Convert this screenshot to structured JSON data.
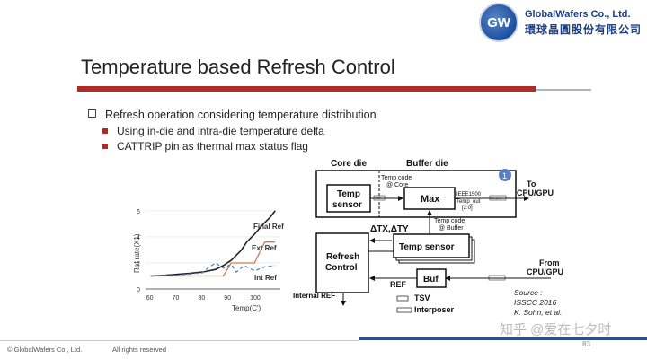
{
  "header": {
    "logo_text": "GW",
    "company_en": "GlobalWafers Co., Ltd.",
    "company_cn": "環球晶圓股份有限公司"
  },
  "title": "Temperature based Refresh Control",
  "bullets": {
    "main": "Refresh operation considering temperature distribution",
    "sub": [
      "Using in-die and intra-die temperature delta",
      "CATTRIP pin as thermal max status flag"
    ]
  },
  "chart_data": {
    "type": "line",
    "xlabel": "Temp(C')",
    "ylabel": "Ref rate(X1)",
    "x_ticks": [
      60,
      70,
      80,
      90,
      100
    ],
    "y_ticks": [
      0,
      2,
      4,
      6
    ],
    "xlim": [
      58,
      110
    ],
    "ylim": [
      0,
      6.2
    ],
    "series": [
      {
        "name": "Final Ref",
        "style": "solid",
        "color": "#222222",
        "x": [
          60,
          65,
          70,
          75,
          80,
          85,
          88,
          91,
          93,
          95,
          97,
          100,
          103,
          106,
          108
        ],
        "y": [
          1.0,
          1.05,
          1.12,
          1.2,
          1.3,
          1.5,
          1.8,
          2.2,
          2.6,
          3.0,
          3.6,
          4.2,
          4.9,
          5.5,
          6.0
        ]
      },
      {
        "name": "Ext Ref",
        "style": "solid",
        "color": "#c97a5a",
        "x": [
          60,
          70,
          80,
          88,
          91,
          95,
          100,
          104,
          108
        ],
        "y": [
          1.0,
          1.0,
          1.0,
          1.0,
          2.0,
          2.0,
          2.0,
          3.6,
          3.6
        ]
      },
      {
        "name": "Int Ref",
        "style": "dashed",
        "color": "#5b86b0",
        "x": [
          60,
          70,
          80,
          82,
          85,
          88,
          91,
          93,
          96,
          100,
          104,
          108
        ],
        "y": [
          1.0,
          1.05,
          1.25,
          1.6,
          2.0,
          1.6,
          1.9,
          1.3,
          1.8,
          1.4,
          1.7,
          1.8
        ]
      }
    ]
  },
  "diagram": {
    "core_die": "Core die",
    "buffer_die": "Buffer die",
    "badge": "1",
    "temp_sensor_top": [
      "Temp",
      "sensor"
    ],
    "max": "Max",
    "temp_code_core": [
      "Temp code",
      "@ Core"
    ],
    "ieee": [
      "IEEE1500",
      "Temp_out",
      "[2:0]"
    ],
    "to_cpu": [
      "To",
      "CPU/GPU"
    ],
    "delta": "ΔTX,ΔTY",
    "temp_code_buffer": [
      "Temp code",
      "@ Buffer"
    ],
    "temp_sensor_mid": "Temp sensor",
    "refresh_control": [
      "Refresh",
      "Control"
    ],
    "from_cpu": [
      "From",
      "CPU/GPU"
    ],
    "ref": "REF",
    "buf": "Buf",
    "internal_ref": "Internal REF",
    "tsv": "TSV",
    "interposer": "Interposer",
    "source": [
      "Source :",
      "ISSCC 2016",
      "K. Sohn, et al."
    ],
    "tsv_tag": "TSV",
    "interposer_tag": "interposer"
  },
  "footer": {
    "copyright": "© GlobalWafers Co., Ltd.",
    "rights": "All rights reserved",
    "watermark": "知乎 @爱在七夕时",
    "page": "83"
  }
}
